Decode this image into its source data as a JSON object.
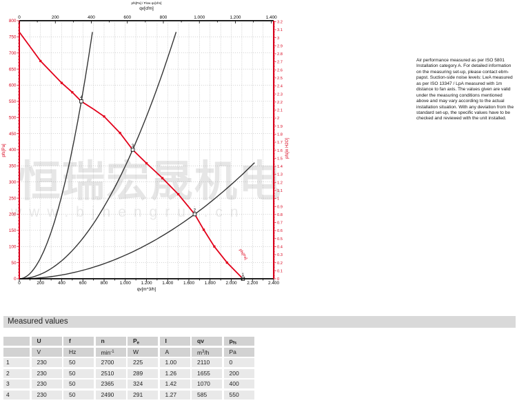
{
  "watermark": {
    "line1": "恒瑞宏晟机电",
    "line2": "www.bjhengrui.cn"
  },
  "note": {
    "text": "Air performance measured as per ISO 5801 Installation category A. For detailed information on the measuring set-up, please contact ebm-papst. Suction-side noise levels: LwA measured as per ISO 13347 / LpA measured with 1m distance to fan axis. The values given are valid under the measuring conditions mentioned above and may vary according to the actual installation situation. With any deviation from the standard set-up, the specific values have to be checked and reviewed with the unit installed."
  },
  "chart_data": {
    "type": "line",
    "small_title": "p_fs[Pa] / Flow qv[cfm]",
    "axes": {
      "top": {
        "label": "qv[cfm]",
        "min": 0,
        "max": 1400,
        "major": 200,
        "minor": 100,
        "color": "#000000",
        "m3h_per_unit": 1.699
      },
      "bottom": {
        "label": "qv[m^3/h]",
        "min": 0,
        "max": 2400,
        "major": 200,
        "minor": 100,
        "color": "#000000"
      },
      "left": {
        "label": "p_fs[Pa]",
        "min": 0,
        "max": 800,
        "major": 50,
        "minor": 10,
        "color": "#d8001a"
      },
      "right": {
        "label": "p_fs[in H2O]",
        "min": 0,
        "max": 3.2,
        "major": 0.1,
        "minor": 0.02,
        "color": "#d8001a",
        "pa_per_unit": 249.089
      }
    },
    "grid": {
      "x_step": 100,
      "y_step": 50,
      "color": "#999999",
      "style": "dotted"
    },
    "fan_curve": {
      "color": "#e2001a",
      "curve_label": "p_fs[Pa]",
      "points": [
        [
          0,
          765
        ],
        [
          200,
          675
        ],
        [
          400,
          607
        ],
        [
          500,
          578
        ],
        [
          585,
          550
        ],
        [
          700,
          526
        ],
        [
          800,
          503
        ],
        [
          950,
          452
        ],
        [
          1070,
          400
        ],
        [
          1200,
          358
        ],
        [
          1350,
          312
        ],
        [
          1500,
          262
        ],
        [
          1655,
          200
        ],
        [
          1740,
          152
        ],
        [
          1840,
          100
        ],
        [
          1960,
          50
        ],
        [
          2110,
          0
        ]
      ],
      "marker_points": [
        [
          200,
          675
        ],
        [
          400,
          607
        ],
        [
          500,
          578
        ],
        [
          800,
          503
        ],
        [
          950,
          452
        ],
        [
          1200,
          358
        ],
        [
          1350,
          312
        ],
        [
          1500,
          262
        ],
        [
          1740,
          152
        ],
        [
          1840,
          100
        ],
        [
          1960,
          50
        ]
      ]
    },
    "operating_points": [
      {
        "label": "1",
        "qv": 2110,
        "p": 0
      },
      {
        "label": "2",
        "qv": 1655,
        "p": 200
      },
      {
        "label": "3",
        "qv": 1070,
        "p": 400
      },
      {
        "label": "4",
        "qv": 585,
        "p": 550
      }
    ],
    "system_curves": [
      {
        "through_qv": 585,
        "through_p": 550,
        "max_p": 765
      },
      {
        "through_qv": 1070,
        "through_p": 400,
        "max_p": 765
      },
      {
        "through_qv": 1655,
        "through_p": 200,
        "max_qv": 2220
      }
    ],
    "system_curve_color": "#333333"
  },
  "table": {
    "title": "Measured values",
    "columns": [
      "",
      "U",
      "f",
      "n",
      "P_e",
      "I",
      "qv",
      "p_fs"
    ],
    "units": [
      "",
      "V",
      "Hz",
      "min^-1",
      "W",
      "A",
      "m^3/h",
      "Pa"
    ],
    "rows": [
      [
        "1",
        "230",
        "50",
        "2700",
        "225",
        "1.00",
        "2110",
        "0"
      ],
      [
        "2",
        "230",
        "50",
        "2510",
        "289",
        "1.26",
        "1655",
        "200"
      ],
      [
        "3",
        "230",
        "50",
        "2365",
        "324",
        "1.42",
        "1070",
        "400"
      ],
      [
        "4",
        "230",
        "50",
        "2490",
        "291",
        "1.27",
        "585",
        "550"
      ]
    ]
  }
}
